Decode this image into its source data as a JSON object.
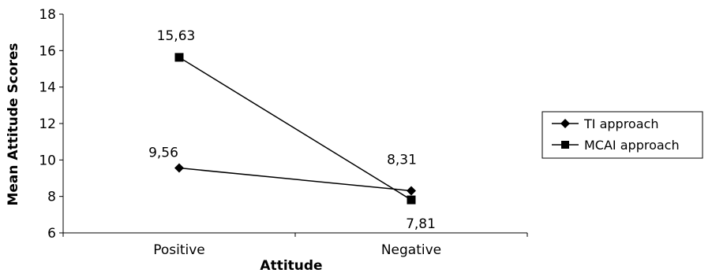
{
  "chart_data": {
    "type": "line",
    "title": "",
    "xlabel": "Attitude",
    "ylabel": "Mean Attitude Scores",
    "categories": [
      "Positive",
      "Negative"
    ],
    "ylim": [
      6,
      18
    ],
    "yticks": [
      "6",
      "8",
      "10",
      "12",
      "14",
      "16",
      "18"
    ],
    "grid": false,
    "legend_position": "right",
    "series": [
      {
        "name": "TI approach",
        "marker": "diamond",
        "values": [
          9.56,
          8.31
        ],
        "labels": [
          "9,56",
          "8,31"
        ]
      },
      {
        "name": "MCAI approach",
        "marker": "square",
        "values": [
          15.63,
          7.81
        ],
        "labels": [
          "15,63",
          "7,81"
        ]
      }
    ]
  }
}
